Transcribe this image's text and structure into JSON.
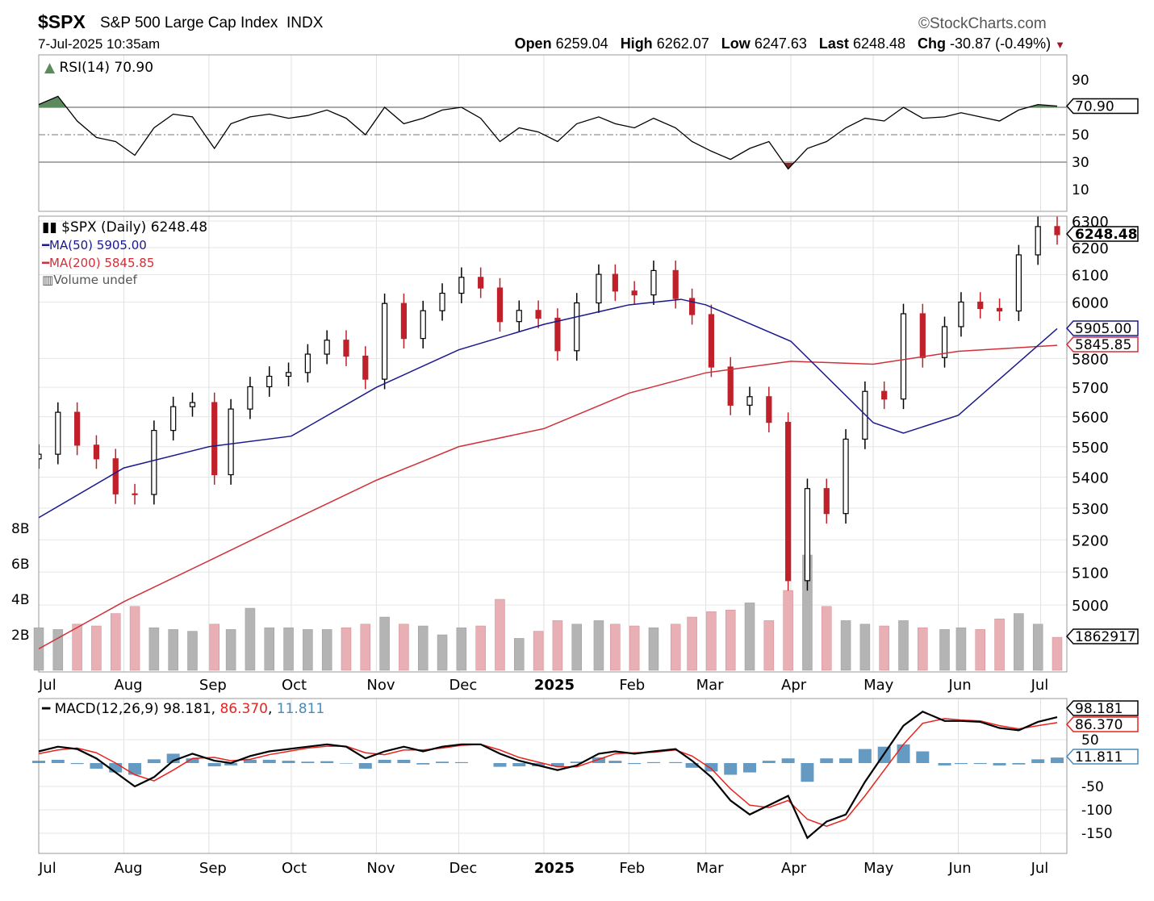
{
  "header": {
    "symbol": "$SPX",
    "name": "S&P 500 Large Cap Index",
    "exchange": "INDX",
    "datetime": "7-Jul-2025 10:35am",
    "brand": "©StockCharts.com",
    "open_label": "Open",
    "open": "6259.04",
    "high_label": "High",
    "high": "6262.07",
    "low_label": "Low",
    "low": "6247.63",
    "last_label": "Last",
    "last": "6248.48",
    "chg_label": "Chg",
    "chg": "-30.87 (-0.49%)"
  },
  "colors": {
    "up": "#000000",
    "down": "#c0202a",
    "ma50": "#1a1a8c",
    "ma200": "#d0303a",
    "vol_up": "#b4b4b4",
    "vol_down": "#e8b0b4",
    "macd": "#000000",
    "signal": "#e8231e",
    "hist": "#4a8ab8",
    "rsi_over": "#5d8a5d",
    "rsi_under": "#7a2a2a"
  },
  "chart_data": [
    {
      "type": "line",
      "panel": "rsi",
      "legend": "RSI(14) 70.90",
      "last_label": "70.90",
      "yticks": [
        90,
        50,
        30,
        10
      ],
      "bands": [
        70,
        50,
        30
      ],
      "ylim": [
        0,
        108
      ],
      "dates": [
        "2024-07-01",
        "2024-07-08",
        "2024-07-15",
        "2024-07-22",
        "2024-07-29",
        "2024-08-05",
        "2024-08-12",
        "2024-08-19",
        "2024-08-26",
        "2024-09-03",
        "2024-09-09",
        "2024-09-16",
        "2024-09-23",
        "2024-09-30",
        "2024-10-07",
        "2024-10-14",
        "2024-10-21",
        "2024-10-28",
        "2024-11-04",
        "2024-11-11",
        "2024-11-18",
        "2024-11-25",
        "2024-12-02",
        "2024-12-09",
        "2024-12-16",
        "2024-12-23",
        "2024-12-30",
        "2025-01-06",
        "2025-01-13",
        "2025-01-21",
        "2025-01-27",
        "2025-02-03",
        "2025-02-10",
        "2025-02-18",
        "2025-02-24",
        "2025-03-03",
        "2025-03-10",
        "2025-03-17",
        "2025-03-24",
        "2025-03-31",
        "2025-04-07",
        "2025-04-14",
        "2025-04-21",
        "2025-04-28",
        "2025-05-05",
        "2025-05-12",
        "2025-05-19",
        "2025-05-27",
        "2025-06-02",
        "2025-06-09",
        "2025-06-16",
        "2025-06-23",
        "2025-06-30",
        "2025-07-07"
      ],
      "values": [
        72,
        78,
        60,
        48,
        45,
        35,
        55,
        65,
        63,
        40,
        58,
        63,
        65,
        62,
        64,
        68,
        62,
        50,
        70,
        58,
        62,
        68,
        70,
        62,
        45,
        55,
        52,
        45,
        58,
        63,
        58,
        55,
        62,
        55,
        45,
        38,
        32,
        40,
        45,
        25,
        40,
        45,
        55,
        62,
        60,
        70,
        62,
        63,
        66,
        63,
        60,
        68,
        72,
        70.9
      ]
    },
    {
      "type": "candlestick",
      "panel": "price",
      "scale": "log",
      "legend": "$SPX (Daily) 6248.48",
      "last_label": "6248.48",
      "ylim": [
        4850,
        6330
      ],
      "yticks": [
        6300,
        6200,
        6100,
        6000,
        5800,
        5700,
        5600,
        5500,
        5400,
        5300,
        5200,
        5100,
        5000
      ],
      "first_open": 5460,
      "closes": [
        5475,
        5615,
        5505,
        5460,
        5346,
        5344,
        5554,
        5634,
        5648,
        5408,
        5626,
        5702,
        5738,
        5751,
        5815,
        5864,
        5808,
        5728,
        5995,
        5870,
        5969,
        6032,
        6090,
        6051,
        5930,
        5970,
        5942,
        5827,
        5997,
        6101,
        6040,
        6026,
        6115,
        6013,
        5955,
        5770,
        5639,
        5668,
        5581,
        5074,
        5363,
        5283,
        5525,
        5686,
        5660,
        5958,
        5803,
        5912,
        6000,
        5977,
        5968,
        6173,
        6279,
        6248.48
      ],
      "ma50": {
        "legend": "MA(50) 5905.00",
        "last_label": "5905.00",
        "dates": [
          "2024-07-01",
          "2024-08-01",
          "2024-09-01",
          "2024-10-01",
          "2024-11-01",
          "2024-12-01",
          "2025-01-01",
          "2025-02-01",
          "2025-02-20",
          "2025-03-01",
          "2025-04-01",
          "2025-05-01",
          "2025-05-12",
          "2025-06-01",
          "2025-07-07"
        ],
        "values": [
          5270,
          5430,
          5500,
          5535,
          5700,
          5830,
          5920,
          5990,
          6010,
          5990,
          5860,
          5580,
          5545,
          5605,
          5905
        ]
      },
      "ma200": {
        "legend": "MA(200) 5845.85",
        "last_label": "5845.85",
        "dates": [
          "2024-07-01",
          "2024-08-01",
          "2024-09-01",
          "2024-10-01",
          "2024-11-01",
          "2024-12-01",
          "2025-01-01",
          "2025-02-01",
          "2025-03-01",
          "2025-04-01",
          "2025-05-01",
          "2025-06-01",
          "2025-07-07"
        ],
        "values": [
          4870,
          5010,
          5135,
          5260,
          5390,
          5500,
          5560,
          5680,
          5750,
          5790,
          5780,
          5825,
          5845.85
        ]
      },
      "volume": {
        "legend": "Volume undef",
        "last_label": "1862917",
        "unit": "B",
        "yticks": [
          2,
          4,
          6,
          8
        ],
        "tick_labels": [
          "2B",
          "4B",
          "6B",
          "8B"
        ],
        "values": [
          2.4,
          2.3,
          2.6,
          2.5,
          3.2,
          3.6,
          2.4,
          2.3,
          2.2,
          2.6,
          2.3,
          3.5,
          2.4,
          2.4,
          2.3,
          2.3,
          2.4,
          2.6,
          3.0,
          2.6,
          2.5,
          2.0,
          2.4,
          2.5,
          4.0,
          1.8,
          2.2,
          2.8,
          2.6,
          2.8,
          2.6,
          2.5,
          2.4,
          2.6,
          3.0,
          3.3,
          3.4,
          3.8,
          2.8,
          4.5,
          6.5,
          3.6,
          2.8,
          2.6,
          2.5,
          2.8,
          2.4,
          2.3,
          2.4,
          2.3,
          2.9,
          3.2,
          2.6,
          1.86
        ]
      }
    },
    {
      "type": "line",
      "panel": "macd",
      "legend": "MACD(12,26,9)",
      "legend_macd": "98.181",
      "legend_signal": "86.370",
      "legend_hist": "11.811",
      "ylim": [
        -190,
        140
      ],
      "yticks": [
        50,
        -50,
        -100,
        -150
      ],
      "macd": [
        25,
        35,
        30,
        10,
        -20,
        -50,
        -30,
        5,
        20,
        5,
        0,
        15,
        25,
        30,
        35,
        40,
        35,
        10,
        25,
        35,
        25,
        35,
        40,
        40,
        20,
        5,
        -5,
        -15,
        -5,
        20,
        25,
        20,
        25,
        30,
        5,
        -30,
        -80,
        -110,
        -90,
        -70,
        -160,
        -125,
        -110,
        -40,
        20,
        80,
        110,
        90,
        90,
        88,
        75,
        70,
        88,
        98.181
      ],
      "signal": [
        20,
        28,
        32,
        22,
        0,
        -25,
        -38,
        -15,
        10,
        12,
        5,
        8,
        18,
        25,
        32,
        36,
        36,
        22,
        18,
        28,
        28,
        32,
        38,
        40,
        28,
        12,
        2,
        -8,
        -8,
        8,
        20,
        22,
        23,
        28,
        15,
        -12,
        -55,
        -90,
        -95,
        -80,
        -120,
        -135,
        -120,
        -70,
        -15,
        40,
        85,
        95,
        92,
        90,
        80,
        73,
        80,
        86.37
      ]
    }
  ],
  "x_axis": {
    "labels": [
      {
        "d": "2024-07-01",
        "t": "Jul"
      },
      {
        "d": "2024-08-01",
        "t": "Aug"
      },
      {
        "d": "2024-09-01",
        "t": "Sep"
      },
      {
        "d": "2024-10-01",
        "t": "Oct"
      },
      {
        "d": "2024-11-01",
        "t": "Nov"
      },
      {
        "d": "2024-12-01",
        "t": "Dec"
      },
      {
        "d": "2025-01-01",
        "t": "2025"
      },
      {
        "d": "2025-02-01",
        "t": "Feb"
      },
      {
        "d": "2025-03-01",
        "t": "Mar"
      },
      {
        "d": "2025-04-01",
        "t": "Apr"
      },
      {
        "d": "2025-05-01",
        "t": "May"
      },
      {
        "d": "2025-06-01",
        "t": "Jun"
      },
      {
        "d": "2025-07-01",
        "t": "Jul"
      }
    ]
  }
}
